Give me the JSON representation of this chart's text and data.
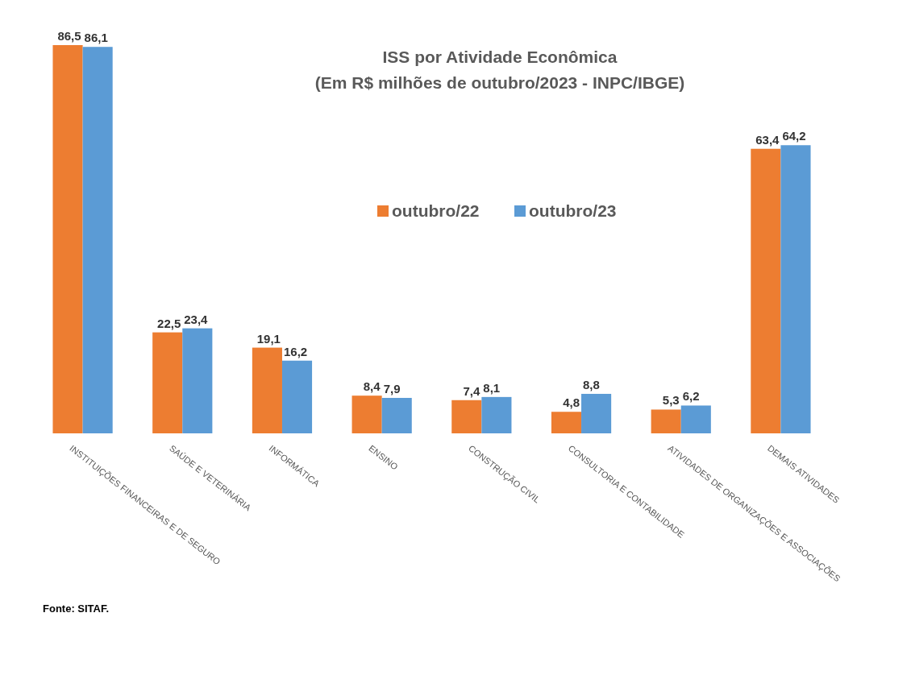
{
  "chart_data": {
    "type": "bar",
    "title": "ISS por Atividade Econômica",
    "subtitle": "(Em R$ milhões de outubro/2023 - INPC/IBGE)",
    "categories": [
      "INSTITUIÇÕES FINANCEIRAS E DE SEGURO",
      "SAÚDE E VETERINÁRIA",
      "INFORMÁTICA",
      "ENSINO",
      "CONSTRUÇÃO CIVIL",
      "CONSULTORIA E CONTABILIDADE",
      "ATIVIDADES DE ORGANIZAÇÕES E ASSOCIAÇÕES",
      "DEMAIS ATIVIDADES"
    ],
    "series": [
      {
        "name": "outubro/22",
        "color": "#ed7d31",
        "values": [
          86.5,
          22.5,
          19.1,
          8.4,
          7.4,
          4.8,
          5.3,
          63.4
        ],
        "value_labels": [
          "86,5",
          "22,5",
          "19,1",
          "8,4",
          "7,4",
          "4,8",
          "5,3",
          "63,4"
        ]
      },
      {
        "name": "outubro/23",
        "color": "#5b9bd5",
        "values": [
          86.1,
          23.4,
          16.2,
          7.9,
          8.1,
          8.8,
          6.2,
          64.2
        ],
        "value_labels": [
          "86,1",
          "23,4",
          "16,2",
          "7,9",
          "8,1",
          "8,8",
          "6,2",
          "64,2"
        ]
      }
    ],
    "legend": "top",
    "annotations": [
      "Fonte: SITAF."
    ]
  }
}
